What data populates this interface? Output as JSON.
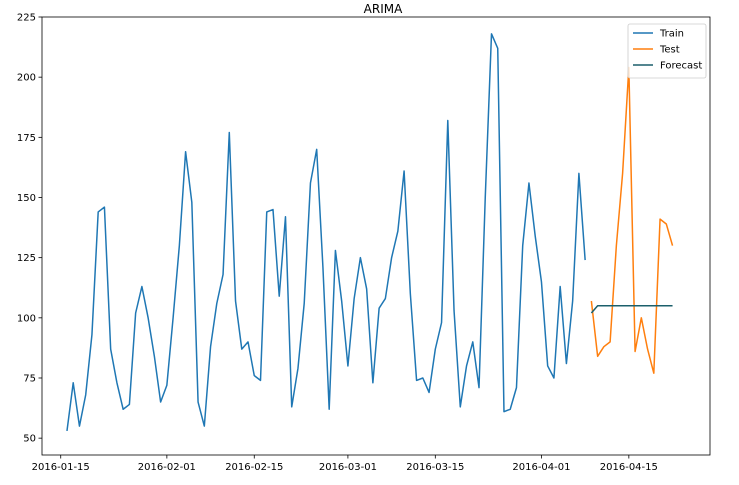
{
  "chart_data": {
    "type": "line",
    "title": "ARIMA",
    "xlabel": "",
    "ylabel": "",
    "xlim": [
      "2016-01-12",
      "2016-04-28"
    ],
    "ylim": [
      43,
      225
    ],
    "xticks": [
      {
        "date": "2016-01-15",
        "label": "2016-01-15"
      },
      {
        "date": "2016-02-01",
        "label": "2016-02-01"
      },
      {
        "date": "2016-02-15",
        "label": "2016-02-15"
      },
      {
        "date": "2016-03-01",
        "label": "2016-03-01"
      },
      {
        "date": "2016-03-15",
        "label": "2016-03-15"
      },
      {
        "date": "2016-04-01",
        "label": "2016-04-01"
      },
      {
        "date": "2016-04-15",
        "label": "2016-04-15"
      }
    ],
    "yticks": [
      50,
      75,
      100,
      125,
      150,
      175,
      200,
      225
    ],
    "grid": false,
    "legend_position": "top-right",
    "series": [
      {
        "name": "Train",
        "color": "#1f77b4",
        "points": [
          [
            "2016-01-16",
            53
          ],
          [
            "2016-01-17",
            73
          ],
          [
            "2016-01-18",
            55
          ],
          [
            "2016-01-19",
            68
          ],
          [
            "2016-01-20",
            93
          ],
          [
            "2016-01-21",
            144
          ],
          [
            "2016-01-22",
            146
          ],
          [
            "2016-01-23",
            87
          ],
          [
            "2016-01-24",
            73
          ],
          [
            "2016-01-25",
            62
          ],
          [
            "2016-01-26",
            64
          ],
          [
            "2016-01-27",
            102
          ],
          [
            "2016-01-28",
            113
          ],
          [
            "2016-01-29",
            100
          ],
          [
            "2016-01-30",
            84
          ],
          [
            "2016-01-31",
            65
          ],
          [
            "2016-02-01",
            72
          ],
          [
            "2016-02-02",
            100
          ],
          [
            "2016-02-03",
            130
          ],
          [
            "2016-02-04",
            169
          ],
          [
            "2016-02-05",
            148
          ],
          [
            "2016-02-06",
            65
          ],
          [
            "2016-02-07",
            55
          ],
          [
            "2016-02-08",
            88
          ],
          [
            "2016-02-09",
            106
          ],
          [
            "2016-02-10",
            118
          ],
          [
            "2016-02-11",
            177
          ],
          [
            "2016-02-12",
            107
          ],
          [
            "2016-02-13",
            87
          ],
          [
            "2016-02-14",
            90
          ],
          [
            "2016-02-15",
            76
          ],
          [
            "2016-02-16",
            74
          ],
          [
            "2016-02-17",
            144
          ],
          [
            "2016-02-18",
            145
          ],
          [
            "2016-02-19",
            109
          ],
          [
            "2016-02-20",
            142
          ],
          [
            "2016-02-21",
            63
          ],
          [
            "2016-02-22",
            79
          ],
          [
            "2016-02-23",
            106
          ],
          [
            "2016-02-24",
            156
          ],
          [
            "2016-02-25",
            170
          ],
          [
            "2016-02-26",
            121
          ],
          [
            "2016-02-27",
            62
          ],
          [
            "2016-02-28",
            128
          ],
          [
            "2016-02-29",
            107
          ],
          [
            "2016-03-01",
            80
          ],
          [
            "2016-03-02",
            108
          ],
          [
            "2016-03-03",
            125
          ],
          [
            "2016-03-04",
            112
          ],
          [
            "2016-03-05",
            73
          ],
          [
            "2016-03-06",
            104
          ],
          [
            "2016-03-07",
            108
          ],
          [
            "2016-03-08",
            125
          ],
          [
            "2016-03-09",
            136
          ],
          [
            "2016-03-10",
            161
          ],
          [
            "2016-03-11",
            110
          ],
          [
            "2016-03-12",
            74
          ],
          [
            "2016-03-13",
            75
          ],
          [
            "2016-03-14",
            69
          ],
          [
            "2016-03-15",
            87
          ],
          [
            "2016-03-16",
            98
          ],
          [
            "2016-03-17",
            182
          ],
          [
            "2016-03-18",
            103
          ],
          [
            "2016-03-19",
            63
          ],
          [
            "2016-03-20",
            80
          ],
          [
            "2016-03-21",
            90
          ],
          [
            "2016-03-22",
            71
          ],
          [
            "2016-03-23",
            150
          ],
          [
            "2016-03-24",
            218
          ],
          [
            "2016-03-25",
            212
          ],
          [
            "2016-03-26",
            61
          ],
          [
            "2016-03-27",
            62
          ],
          [
            "2016-03-28",
            71
          ],
          [
            "2016-03-29",
            130
          ],
          [
            "2016-03-30",
            156
          ],
          [
            "2016-03-31",
            134
          ],
          [
            "2016-04-01",
            115
          ],
          [
            "2016-04-02",
            80
          ],
          [
            "2016-04-03",
            75
          ],
          [
            "2016-04-04",
            113
          ],
          [
            "2016-04-05",
            81
          ],
          [
            "2016-04-06",
            107
          ],
          [
            "2016-04-07",
            160
          ],
          [
            "2016-04-08",
            124
          ]
        ]
      },
      {
        "name": "Test",
        "color": "#ff7f0e",
        "points": [
          [
            "2016-04-09",
            107
          ],
          [
            "2016-04-10",
            84
          ],
          [
            "2016-04-11",
            88
          ],
          [
            "2016-04-12",
            90
          ],
          [
            "2016-04-13",
            130
          ],
          [
            "2016-04-14",
            160
          ],
          [
            "2016-04-15",
            204
          ],
          [
            "2016-04-16",
            86
          ],
          [
            "2016-04-17",
            100
          ],
          [
            "2016-04-18",
            87
          ],
          [
            "2016-04-19",
            77
          ],
          [
            "2016-04-20",
            141
          ],
          [
            "2016-04-21",
            139
          ],
          [
            "2016-04-22",
            130
          ]
        ]
      },
      {
        "name": "Forecast",
        "color": "#1b5f6b",
        "points": [
          [
            "2016-04-09",
            102
          ],
          [
            "2016-04-10",
            105
          ],
          [
            "2016-04-11",
            105
          ],
          [
            "2016-04-12",
            105
          ],
          [
            "2016-04-13",
            105
          ],
          [
            "2016-04-14",
            105
          ],
          [
            "2016-04-15",
            105
          ],
          [
            "2016-04-16",
            105
          ],
          [
            "2016-04-17",
            105
          ],
          [
            "2016-04-18",
            105
          ],
          [
            "2016-04-19",
            105
          ],
          [
            "2016-04-20",
            105
          ],
          [
            "2016-04-21",
            105
          ],
          [
            "2016-04-22",
            105
          ]
        ]
      }
    ]
  }
}
